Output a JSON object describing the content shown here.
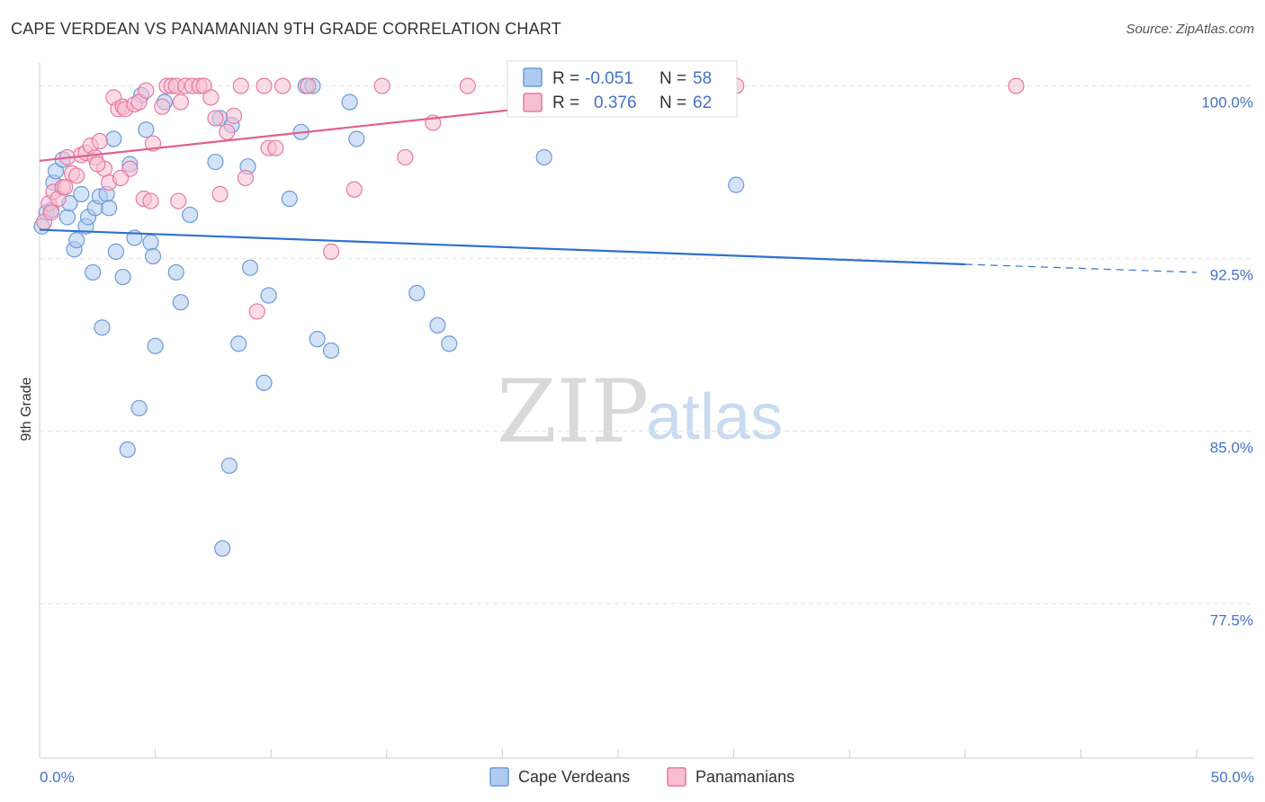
{
  "title": "CAPE VERDEAN VS PANAMANIAN 9TH GRADE CORRELATION CHART",
  "source": "Source: ZipAtlas.com",
  "chart_data": {
    "type": "scatter",
    "title": "CAPE VERDEAN VS PANAMANIAN 9TH GRADE CORRELATION CHART",
    "xlabel": "",
    "ylabel": "9th Grade",
    "xlim": [
      0,
      50
    ],
    "ylim": [
      70.8,
      101.0
    ],
    "x_tick_labels": [
      {
        "value": 0,
        "label": "0.0%"
      },
      {
        "value": 50,
        "label": "50.0%"
      }
    ],
    "y_tick_labels": [
      {
        "value": 100.0,
        "label": "100.0%"
      },
      {
        "value": 92.5,
        "label": "92.5%"
      },
      {
        "value": 85.0,
        "label": "85.0%"
      },
      {
        "value": 77.5,
        "label": "77.5%"
      }
    ],
    "x_minor_ticks": [
      0,
      5,
      10,
      15,
      20,
      25,
      30,
      35,
      40,
      45,
      50
    ],
    "grid": true,
    "legend_position": "top-center",
    "watermark": {
      "zip": "ZIP",
      "atlas": "atlas"
    },
    "series": [
      {
        "name": "Cape Verdeans",
        "color": "#6b9bd8",
        "fill": "#aecbf0",
        "stats": {
          "r_label": "R =",
          "r_value": "-0.051",
          "n_label": "N =",
          "n_value": "58"
        },
        "trend": {
          "x0": 0,
          "y0": 93.75,
          "x1": 40,
          "y1": 92.25,
          "dash_to": 50,
          "dash_y": 91.9
        },
        "points": [
          [
            0.1,
            93.9
          ],
          [
            0.3,
            94.5
          ],
          [
            0.5,
            94.6
          ],
          [
            0.6,
            95.8
          ],
          [
            0.7,
            96.3
          ],
          [
            1.0,
            96.8
          ],
          [
            1.2,
            94.3
          ],
          [
            1.3,
            94.9
          ],
          [
            1.5,
            92.9
          ],
          [
            1.6,
            93.3
          ],
          [
            1.8,
            95.3
          ],
          [
            2.0,
            93.9
          ],
          [
            2.1,
            94.3
          ],
          [
            2.3,
            91.9
          ],
          [
            2.4,
            94.7
          ],
          [
            2.6,
            95.2
          ],
          [
            2.7,
            89.5
          ],
          [
            2.9,
            95.3
          ],
          [
            3.0,
            94.7
          ],
          [
            3.2,
            97.7
          ],
          [
            3.3,
            92.8
          ],
          [
            3.6,
            91.7
          ],
          [
            3.8,
            84.2
          ],
          [
            3.9,
            96.6
          ],
          [
            4.1,
            93.4
          ],
          [
            4.3,
            86.0
          ],
          [
            4.4,
            99.6
          ],
          [
            4.6,
            98.1
          ],
          [
            4.8,
            93.2
          ],
          [
            4.9,
            92.6
          ],
          [
            5.0,
            88.7
          ],
          [
            5.4,
            99.3
          ],
          [
            5.9,
            91.9
          ],
          [
            6.1,
            90.6
          ],
          [
            6.5,
            94.4
          ],
          [
            7.6,
            96.7
          ],
          [
            7.8,
            98.6
          ],
          [
            7.9,
            79.9
          ],
          [
            8.2,
            83.5
          ],
          [
            8.3,
            98.3
          ],
          [
            8.6,
            88.8
          ],
          [
            9.0,
            96.5
          ],
          [
            9.1,
            92.1
          ],
          [
            9.7,
            87.1
          ],
          [
            9.9,
            90.9
          ],
          [
            10.8,
            95.1
          ],
          [
            11.3,
            98.0
          ],
          [
            11.5,
            100.0
          ],
          [
            11.8,
            100.0
          ],
          [
            12.0,
            89.0
          ],
          [
            12.6,
            88.5
          ],
          [
            13.4,
            99.3
          ],
          [
            13.7,
            97.7
          ],
          [
            16.3,
            91.0
          ],
          [
            17.2,
            89.6
          ],
          [
            17.7,
            88.8
          ],
          [
            21.8,
            96.9
          ],
          [
            30.1,
            95.7
          ]
        ]
      },
      {
        "name": "Panamanians",
        "color": "#e8799f",
        "fill": "#f6bfd2",
        "stats": {
          "r_label": "R =",
          "r_value": "0.376",
          "n_label": "N =",
          "n_value": "62"
        },
        "trend": {
          "x0": 0,
          "y0": 96.75,
          "x1": 30,
          "y1": 100.0
        },
        "points": [
          [
            0.2,
            94.1
          ],
          [
            0.4,
            94.9
          ],
          [
            0.6,
            95.4
          ],
          [
            0.8,
            95.1
          ],
          [
            1.0,
            95.6
          ],
          [
            1.2,
            96.9
          ],
          [
            1.4,
            96.2
          ],
          [
            1.6,
            96.1
          ],
          [
            1.8,
            97.0
          ],
          [
            2.0,
            97.1
          ],
          [
            2.2,
            97.4
          ],
          [
            2.4,
            96.9
          ],
          [
            2.6,
            97.6
          ],
          [
            2.8,
            96.4
          ],
          [
            3.0,
            95.8
          ],
          [
            3.2,
            99.5
          ],
          [
            3.4,
            99.0
          ],
          [
            3.6,
            99.1
          ],
          [
            3.7,
            99.0
          ],
          [
            3.9,
            96.4
          ],
          [
            4.1,
            99.2
          ],
          [
            4.3,
            99.3
          ],
          [
            4.5,
            95.1
          ],
          [
            4.6,
            99.8
          ],
          [
            4.8,
            95.0
          ],
          [
            4.9,
            97.5
          ],
          [
            5.3,
            99.1
          ],
          [
            5.5,
            100.0
          ],
          [
            5.7,
            100.0
          ],
          [
            5.9,
            100.0
          ],
          [
            6.1,
            99.3
          ],
          [
            6.3,
            100.0
          ],
          [
            6.6,
            100.0
          ],
          [
            6.9,
            100.0
          ],
          [
            7.1,
            100.0
          ],
          [
            7.4,
            99.5
          ],
          [
            7.6,
            98.6
          ],
          [
            7.8,
            95.3
          ],
          [
            8.1,
            98.0
          ],
          [
            8.4,
            98.7
          ],
          [
            8.7,
            100.0
          ],
          [
            9.4,
            90.2
          ],
          [
            9.7,
            100.0
          ],
          [
            9.9,
            97.3
          ],
          [
            10.2,
            97.3
          ],
          [
            10.5,
            100.0
          ],
          [
            11.6,
            100.0
          ],
          [
            12.6,
            92.8
          ],
          [
            13.6,
            95.5
          ],
          [
            14.8,
            100.0
          ],
          [
            15.8,
            96.9
          ],
          [
            17.0,
            98.4
          ],
          [
            18.5,
            100.0
          ],
          [
            23.2,
            100.0
          ],
          [
            30.1,
            100.0
          ],
          [
            42.2,
            100.0
          ],
          [
            0.5,
            94.5
          ],
          [
            1.1,
            95.6
          ],
          [
            2.5,
            96.6
          ],
          [
            3.5,
            96.0
          ],
          [
            6.0,
            95.0
          ],
          [
            8.9,
            96.0
          ]
        ]
      }
    ]
  }
}
